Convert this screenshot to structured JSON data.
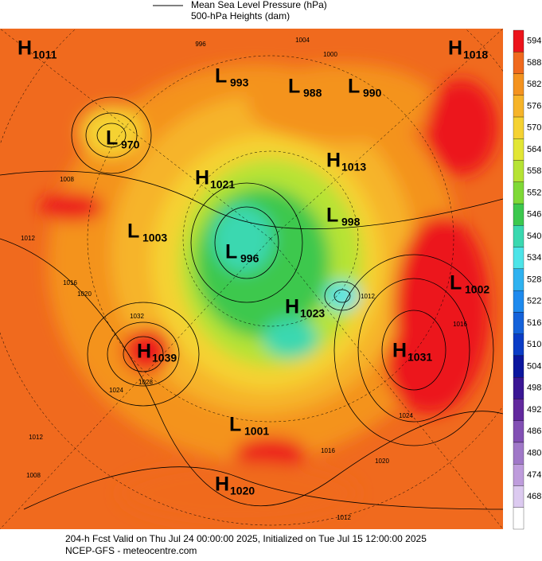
{
  "legend": [
    "Mean Sea Level Pressure (hPa)",
    "500-hPa Heights (dam)"
  ],
  "pressure_centers": [
    {
      "type": "H",
      "value": 1011
    },
    {
      "type": "L",
      "value": 993
    },
    {
      "type": "L",
      "value": 988
    },
    {
      "type": "L",
      "value": 990
    },
    {
      "type": "H",
      "value": 1018
    },
    {
      "type": "L",
      "value": 970
    },
    {
      "type": "H",
      "value": 1013
    },
    {
      "type": "H",
      "value": 1021
    },
    {
      "type": "L",
      "value": 998
    },
    {
      "type": "L",
      "value": 1003
    },
    {
      "type": "L",
      "value": 996
    },
    {
      "type": "L",
      "value": 1002
    },
    {
      "type": "H",
      "value": 1023
    },
    {
      "type": "H",
      "value": 1031
    },
    {
      "type": "H",
      "value": 1039
    },
    {
      "type": "L",
      "value": 1001
    },
    {
      "type": "H",
      "value": 1020
    }
  ],
  "contour_labels": [
    1004,
    1000,
    996,
    1008,
    1012,
    1016,
    1020,
    1032,
    1028,
    1024,
    1024,
    1020,
    1016,
    1012,
    1008,
    1012,
    1016,
    1012
  ],
  "colorbar": {
    "ticks": [
      594,
      588,
      582,
      576,
      570,
      564,
      558,
      552,
      546,
      540,
      534,
      528,
      522,
      516,
      510,
      504,
      498,
      492,
      486,
      480,
      474,
      468
    ],
    "colors": [
      "#ec141c",
      "#f06a1e",
      "#f4931f",
      "#f6b429",
      "#f5d232",
      "#e2e635",
      "#b6e334",
      "#7fd936",
      "#3cc84e",
      "#3ad8b0",
      "#4de4e8",
      "#2fb2f0",
      "#1e8aee",
      "#1462da",
      "#0a3cc6",
      "#0b169e",
      "#3a1694",
      "#62299e",
      "#8250b4",
      "#a078c8",
      "#be9cdc",
      "#dccaf0",
      "#ffffff"
    ]
  },
  "footer": [
    "204-h Fcst Valid on Thu Jul 24 00:00:00 2025, Initialized on Tue Jul 15 12:00:00 2025",
    "NCEP-GFS  - meteocentre.com"
  ]
}
